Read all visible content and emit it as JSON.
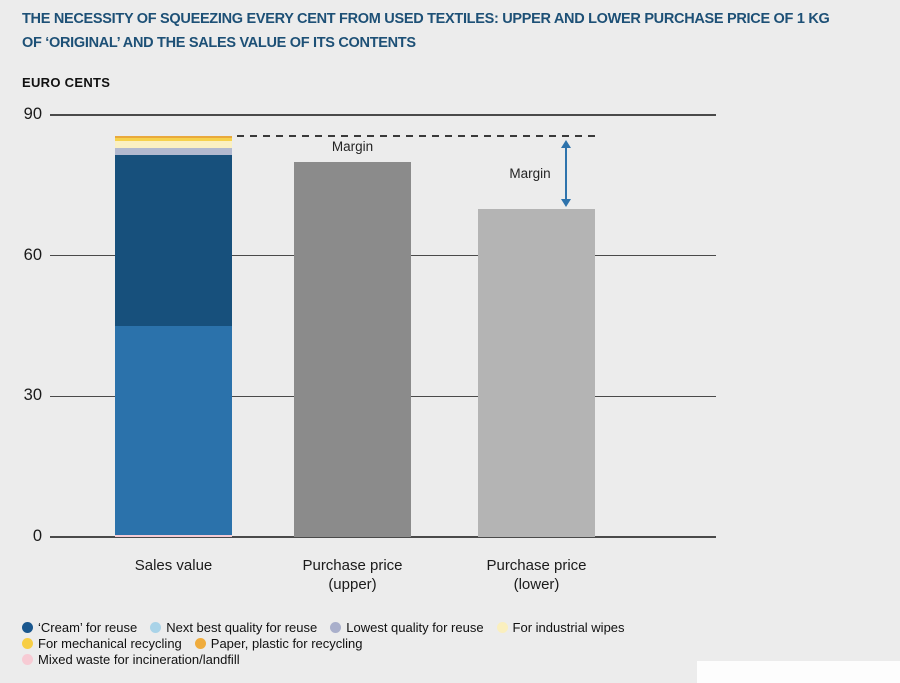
{
  "panel": {
    "background": "#ECECEC",
    "title_color": "#1D5076"
  },
  "title": {
    "lines": [
      "THE NECESSITY OF SQUEEZING EVERY CENT FROM USED TEXTILES: UPPER AND LOWER PURCHASE PRICE OF 1 KG",
      "OF ‘ORIGINAL’ AND THE SALES VALUE OF ITS CONTENTS"
    ]
  },
  "axis": {
    "unit_label": "EURO CENTS"
  },
  "chart_data": {
    "type": "bar",
    "stacked": true,
    "title": "THE NECESSITY OF SQUEEZING EVERY CENT FROM USED TEXTILES: UPPER AND LOWER PURCHASE PRICE OF 1 KG OF ‘ORIGINAL’ AND THE SALES VALUE OF ITS CONTENTS",
    "ylabel": "EURO CENTS",
    "ylim": [
      0,
      90
    ],
    "yticks": [
      0,
      30,
      60,
      90
    ],
    "grid": "horizontal",
    "legend_position": "bottom",
    "categories": [
      "Sales value",
      "Purchase price (upper)",
      "Purchase price (lower)"
    ],
    "bars": [
      {
        "category": "Sales value",
        "label_lines": [
          "Sales value"
        ],
        "total": 85.5,
        "segments_bottom_to_top": [
          {
            "name": "Mixed waste for incineration/landfill",
            "value": 0.5,
            "color": "#F4CBD4"
          },
          {
            "name": "Next best quality for reuse",
            "value": 44.5,
            "color": "#2B72AB"
          },
          {
            "name": "‘Cream’ for reuse",
            "value": 36.5,
            "color": "#17507C"
          },
          {
            "name": "Lowest quality for reuse",
            "value": 1.5,
            "color": "#B2B9CF"
          },
          {
            "name": "For industrial wipes",
            "value": 1.5,
            "color": "#FAF0C2"
          },
          {
            "name": "For mechanical recycling",
            "value": 0.5,
            "color": "#F6D14B"
          },
          {
            "name": "Paper, plastic for recycling",
            "value": 0.5,
            "color": "#E9A93C"
          }
        ]
      },
      {
        "category": "Purchase price (upper)",
        "label_lines": [
          "Purchase price",
          "(upper)"
        ],
        "value": 80,
        "color": "#8B8B8B"
      },
      {
        "category": "Purchase price (lower)",
        "label_lines": [
          "Purchase price",
          "(lower)"
        ],
        "value": 70,
        "color": "#B4B4B4"
      }
    ],
    "annotations": {
      "dashed_line_value": 85.5,
      "margin_label_upper": "Margin",
      "margin_label_lower": "Margin",
      "arrow": {
        "from_value": 85.5,
        "to_value": 70,
        "color": "#2E73AC"
      }
    }
  },
  "legend": {
    "rows": [
      [
        {
          "label": "‘Cream’ for reuse",
          "color": "#1A578E"
        },
        {
          "label": "Next best quality for reuse",
          "color": "#A9D3E8"
        },
        {
          "label": "Lowest quality for reuse",
          "color": "#A9AFCB"
        },
        {
          "label": "For industrial wipes",
          "color": "#FAEFBE"
        }
      ],
      [
        {
          "label": "For mechanical recycling",
          "color": "#F7CE45"
        },
        {
          "label": "Paper, plastic for recycling",
          "color": "#EFAC3D"
        }
      ],
      [
        {
          "label": "Mixed waste for incineration/landfill",
          "color": "#F7CBD4"
        }
      ]
    ]
  }
}
